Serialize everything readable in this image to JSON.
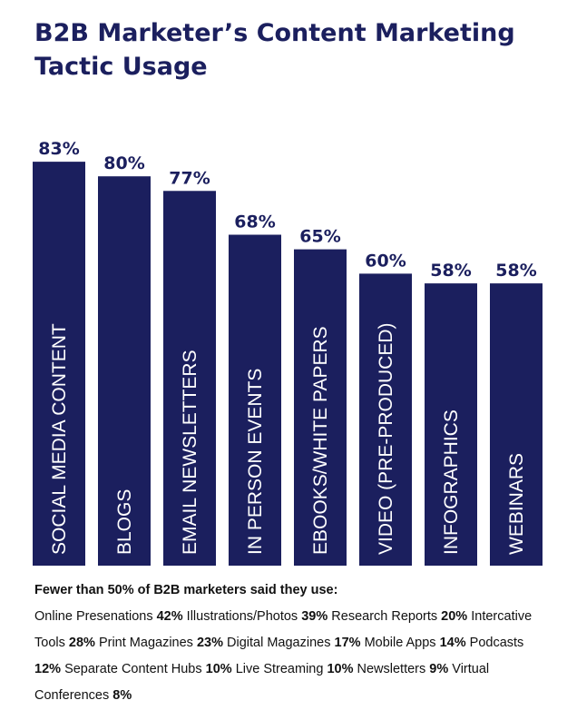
{
  "title": "B2B Marketer’s Content Marketing Tactic Usage",
  "chart_data": {
    "type": "bar",
    "categories": [
      "SOCIAL MEDIA CONTENT",
      "BLOGS",
      "EMAIL NEWSLETTERS",
      "IN PERSON EVENTS",
      "EBOOKS/WHITE PAPERS",
      "VIDEO (PRE-PRODUCED)",
      "INFOGRAPHICS",
      "WEBINARS"
    ],
    "values": [
      83,
      80,
      77,
      68,
      65,
      60,
      58,
      58
    ],
    "value_labels": [
      "83%",
      "80%",
      "77%",
      "68%",
      "65%",
      "60%",
      "58%",
      "58%"
    ],
    "ylim": [
      0,
      100
    ],
    "bar_color": "#1b1f5e",
    "label_color": "#ffffff",
    "grid": false
  },
  "footnote": {
    "heading": "Fewer than 50% of B2B marketers said they use:",
    "items": [
      {
        "label": "Online Presenations",
        "value": "42%"
      },
      {
        "label": "Illustrations/Photos",
        "value": "39%"
      },
      {
        "label": "Research Reports",
        "value": "20%"
      },
      {
        "label": "Intercative Tools",
        "value": "28%"
      },
      {
        "label": "Print Magazines",
        "value": "23%"
      },
      {
        "label": "Digital Magazines",
        "value": "17%"
      },
      {
        "label": "Mobile Apps",
        "value": "14%"
      },
      {
        "label": "Podcasts",
        "value": "12%"
      },
      {
        "label": "Separate Content Hubs",
        "value": "10%"
      },
      {
        "label": "Live Streaming",
        "value": "10%"
      },
      {
        "label": "Newsletters",
        "value": "9%"
      },
      {
        "label": "Virtual Conferences",
        "value": "8%"
      }
    ]
  }
}
